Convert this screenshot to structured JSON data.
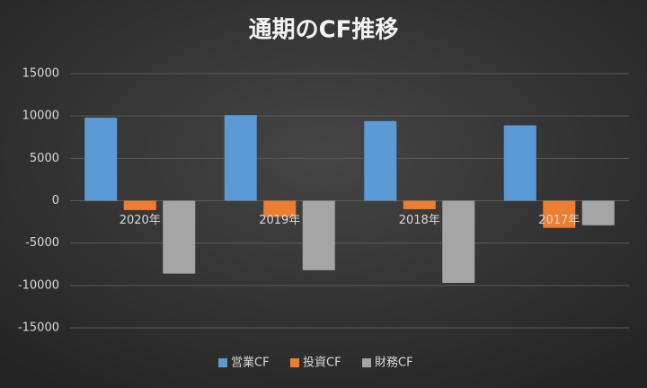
{
  "chart_data": {
    "type": "bar",
    "title": "通期のCF推移",
    "categories": [
      "2020年",
      "2019年",
      "2018年",
      "2017年"
    ],
    "series": [
      {
        "name": "営業CF",
        "color": "#5b9bd5",
        "values": [
          9800,
          10100,
          9400,
          8900
        ]
      },
      {
        "name": "投資CF",
        "color": "#ed7d31",
        "values": [
          -1100,
          -1900,
          -1000,
          -3200
        ]
      },
      {
        "name": "財務CF",
        "color": "#a5a5a5",
        "values": [
          -8600,
          -8200,
          -9700,
          -2900
        ]
      }
    ],
    "ylim": [
      -15000,
      15000
    ],
    "yticks": [
      -15000,
      -10000,
      -5000,
      0,
      5000,
      10000,
      15000
    ],
    "grid": true,
    "legend": "bottom"
  }
}
